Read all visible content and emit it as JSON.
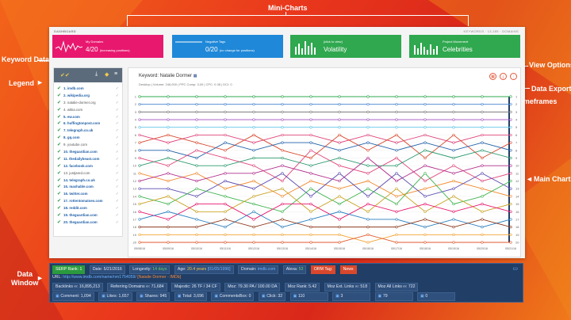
{
  "callouts": {
    "mini_charts": "Mini-Charts",
    "keyword_data": "Keyword Data",
    "legend": "Legend",
    "view_options": "View Options",
    "data_export": "Data Export",
    "timeframes": "Timeframes",
    "main_chart": "Main Chart",
    "data_window": "Data\nWindow"
  },
  "topbar": {
    "title": "DASHBOARD",
    "right": "KEYWORDS · 13,285 · DOMAINS"
  },
  "cards": [
    {
      "small": "My Domains",
      "big": "4/20",
      "note": "(increasing positions)",
      "color": "#e8186f"
    },
    {
      "small": "Negative Tags",
      "big": "0/20",
      "note": "(no change for positions)",
      "color": "#1f88d8"
    },
    {
      "small": "[click to view]",
      "big": "Volatility",
      "note": "",
      "color": "#2fa84f"
    },
    {
      "small": "Project Movement",
      "big": "Celebrities",
      "note": "",
      "color": "#2fa84f"
    }
  ],
  "legend": {
    "items": [
      "1. imdb.com",
      "2. wikipedia.org",
      "3. natalie-dormer.org",
      "4. wikia.com",
      "5. ew.com",
      "6. huffingtonpost.com",
      "7. telegraph.co.uk",
      "8. gq.com",
      "9. youtube.com",
      "10. theguardian.com",
      "11. thedailybeast.com",
      "12. facebook.com",
      "13. justjared.com",
      "14. telegraph.co.uk",
      "15. mashable.com",
      "16. twitter.com",
      "17. rottentomatoes.com",
      "18. reddit.com",
      "19. theguardian.com",
      "20. theguardian.com"
    ],
    "bold": [
      true,
      true,
      false,
      false,
      true,
      true,
      true,
      true,
      false,
      true,
      true,
      true,
      false,
      true,
      true,
      true,
      true,
      true,
      true,
      true
    ]
  },
  "chart_panel": {
    "keyword_label": "Keyword: Natalie Dormer",
    "sub": "Desktop | Volume: 246,000 | PPC Comp: 3.00 | CPC: 0.38 | DCI: 0"
  },
  "chart_data": {
    "type": "line",
    "x": [
      "05/08/16",
      "05/09/16",
      "05/10/16",
      "05/11/16",
      "05/12/16",
      "05/13/16",
      "05/14/16",
      "05/15/16",
      "05/16/16",
      "05/17/16",
      "05/18/16",
      "05/19/16",
      "05/20/16",
      "05/21/16"
    ],
    "ylim": [
      1,
      20
    ],
    "y_ticks": [
      1,
      2,
      3,
      4,
      5,
      6,
      7,
      8,
      9,
      10,
      11,
      12,
      13,
      14,
      15,
      16,
      17,
      18,
      19,
      20
    ],
    "y_inverted": true,
    "series": [
      {
        "color": "#2fa84f",
        "values": [
          1,
          1,
          1,
          1,
          1,
          1,
          1,
          1,
          1,
          1,
          1,
          1,
          1,
          1
        ]
      },
      {
        "color": "#3f7fd0",
        "values": [
          2,
          2,
          2,
          2,
          2,
          2,
          2,
          2,
          2,
          2,
          2,
          2,
          2,
          2
        ]
      },
      {
        "color": "#7a7a7a",
        "values": [
          3,
          3,
          3,
          3,
          3,
          3,
          3,
          3,
          3,
          3,
          3,
          3,
          3,
          3
        ]
      },
      {
        "color": "#9c4fc0",
        "values": [
          4,
          4,
          4,
          4,
          4,
          4,
          4,
          4,
          4,
          4,
          4,
          4,
          4,
          4
        ]
      },
      {
        "color": "#5fc3e8",
        "values": [
          5,
          5,
          5,
          5,
          5,
          5,
          5,
          5,
          5,
          5,
          5,
          5,
          5,
          5
        ]
      },
      {
        "color": "#e0457b",
        "values": [
          6,
          7,
          6,
          6,
          7,
          6,
          6,
          7,
          6,
          7,
          6,
          7,
          6,
          6
        ]
      },
      {
        "color": "#d9482c",
        "values": [
          7,
          6,
          7,
          8,
          6,
          8,
          9,
          6,
          8,
          6,
          9,
          6,
          9,
          7
        ]
      },
      {
        "color": "#1f5fa8",
        "values": [
          8,
          8,
          9,
          7,
          8,
          7,
          7,
          8,
          7,
          8,
          7,
          8,
          7,
          8
        ]
      },
      {
        "color": "#e0457b",
        "values": [
          9,
          10,
          8,
          9,
          10,
          12,
          8,
          10,
          11,
          9,
          12,
          10,
          12,
          11
        ]
      },
      {
        "color": "#2b9a6e",
        "values": [
          10,
          9,
          10,
          10,
          9,
          9,
          10,
          9,
          10,
          10,
          8,
          9,
          8,
          9
        ]
      },
      {
        "color": "#f28a2e",
        "values": [
          11,
          12,
          11,
          13,
          12,
          14,
          12,
          13,
          12,
          14,
          13,
          12,
          13,
          14
        ]
      },
      {
        "color": "#b12e8c",
        "values": [
          12,
          11,
          12,
          11,
          11,
          10,
          11,
          12,
          9,
          12,
          10,
          11,
          10,
          10
        ]
      },
      {
        "color": "#5a4bb0",
        "values": [
          13,
          13,
          14,
          12,
          13,
          11,
          14,
          11,
          14,
          11,
          14,
          13,
          11,
          13
        ]
      },
      {
        "color": "#3fb34f",
        "values": [
          14,
          15,
          13,
          14,
          15,
          16,
          13,
          15,
          13,
          15,
          11,
          15,
          14,
          12
        ]
      },
      {
        "color": "#c8a21f",
        "values": [
          15,
          14,
          16,
          16,
          14,
          13,
          16,
          14,
          16,
          13,
          16,
          14,
          16,
          15
        ]
      },
      {
        "color": "#e8186f",
        "values": [
          16,
          17,
          15,
          15,
          17,
          15,
          15,
          17,
          15,
          16,
          15,
          16,
          15,
          16
        ]
      },
      {
        "color": "#2a7fc0",
        "values": [
          17,
          16,
          17,
          18,
          16,
          18,
          17,
          16,
          17,
          17,
          18,
          17,
          18,
          17
        ]
      },
      {
        "color": "#8c3a1e",
        "values": [
          18,
          18,
          18,
          17,
          18,
          17,
          18,
          18,
          18,
          18,
          17,
          18,
          17,
          18
        ]
      },
      {
        "color": "#f2a22e",
        "values": [
          19,
          19,
          19,
          19,
          19,
          19,
          19,
          19,
          20,
          19,
          19,
          19,
          19,
          19
        ]
      },
      {
        "color": "#e05a2c",
        "values": [
          20,
          20,
          20,
          20,
          20,
          20,
          20,
          20,
          19,
          20,
          20,
          20,
          20,
          20
        ]
      }
    ]
  },
  "data_window": {
    "serp_rank": "SERP Rank: 1",
    "date": "Date: 5/21/2016",
    "longevity_label": "Longevity:",
    "longevity": "14 days",
    "age_label": "Age:",
    "age": "20.4 years",
    "age_date": "[01/05/1996]",
    "domain_label": "Domain:",
    "domain": "imdb.com",
    "alexa_label": "Alexa:",
    "alexa": "53",
    "orm_tag_label": "ORM Tag:",
    "orm_tag": "News",
    "url_label": "URL:",
    "url": "http://www.imdb.com/name/nm1754059/",
    "page_title": "[Natalie Dormer - IMDb]",
    "backlinks": "Backlinks ∞: 16,895,213",
    "ref_domains": "Referring Domains ∞: 71,684",
    "majestic": "Majestic: 26 TF / 34 CF",
    "moz": "Moz: 79.30 PA / 100.00 DA",
    "moz_rank": "Moz Rank: 5.42",
    "moz_ext": "Moz Ext. Links ∞: 518",
    "moz_all": "Moz All Links ∞: 722",
    "comment": "Comment: 1,094",
    "likes": "Likes: 1,657",
    "shares": "Shares: 945",
    "total": "Total: 3,696",
    "commentsbox": "CommentsBox: 0",
    "click": "Click: 32",
    "s1": "110",
    "s2": "3",
    "s3": "79",
    "s4": "0"
  }
}
